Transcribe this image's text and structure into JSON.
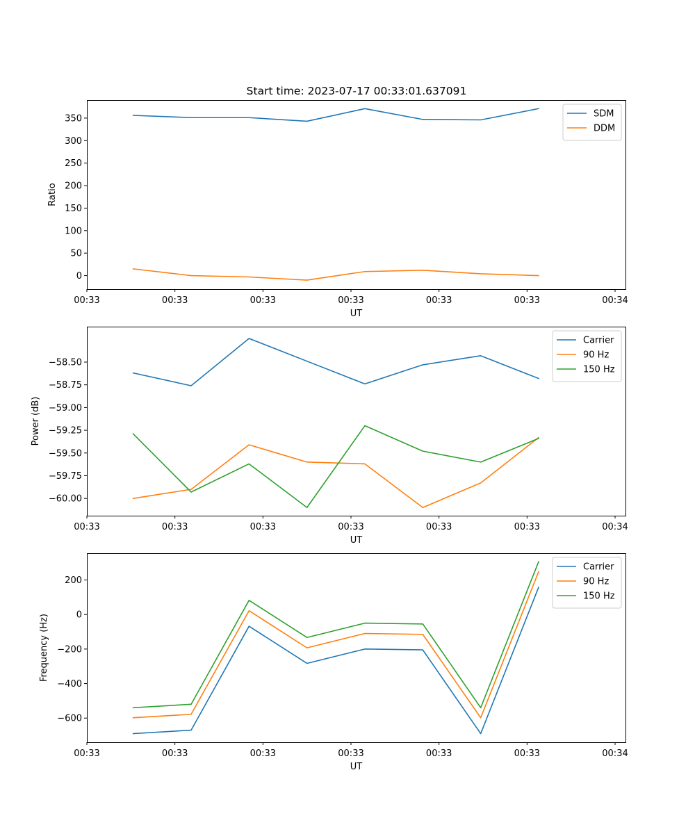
{
  "colors": {
    "blue": "#1f77b4",
    "orange": "#ff7f0e",
    "green": "#2ca02c"
  },
  "chart_data": [
    {
      "type": "line",
      "title": "Start time: 2023-07-17 00:33:01.637091",
      "xlabel": "UT",
      "ylabel": "Ratio",
      "x": [
        1,
        2,
        3,
        4,
        5,
        6,
        7,
        8
      ],
      "xlim": [
        0.2,
        9.5
      ],
      "xticks": [
        0.2,
        1.72,
        3.24,
        4.76,
        6.28,
        7.8,
        9.32
      ],
      "xtick_labels": [
        "00:33",
        "00:33",
        "00:33",
        "00:33",
        "00:33",
        "00:33",
        "00:34"
      ],
      "ylim": [
        -30,
        390
      ],
      "yticks": [
        0,
        50,
        100,
        150,
        200,
        250,
        300,
        350
      ],
      "ytick_labels": [
        "0",
        "50",
        "100",
        "150",
        "200",
        "250",
        "300",
        "350"
      ],
      "legend_loc": "upper right",
      "series": [
        {
          "name": "SDM",
          "color": "#1f77b4",
          "values": [
            356,
            351,
            351,
            343,
            371,
            347,
            346,
            371
          ]
        },
        {
          "name": "DDM",
          "color": "#ff7f0e",
          "values": [
            15,
            0,
            -3,
            -10,
            9,
            12,
            4,
            0
          ]
        }
      ]
    },
    {
      "type": "line",
      "title": "",
      "xlabel": "UT",
      "ylabel": "Power (dB)",
      "x": [
        1,
        2,
        3,
        4,
        5,
        6,
        7,
        8
      ],
      "xlim": [
        0.2,
        9.5
      ],
      "xticks": [
        0.2,
        1.72,
        3.24,
        4.76,
        6.28,
        7.8,
        9.32
      ],
      "xtick_labels": [
        "00:33",
        "00:33",
        "00:33",
        "00:33",
        "00:33",
        "00:33",
        "00:34"
      ],
      "ylim": [
        -60.19,
        -58.11
      ],
      "yticks": [
        -60.0,
        -59.75,
        -59.5,
        -59.25,
        -59.0,
        -58.75,
        -58.5
      ],
      "ytick_labels": [
        "−60.00",
        "−59.75",
        "−59.50",
        "−59.25",
        "−59.00",
        "−58.75",
        "−58.50"
      ],
      "legend_loc": "upper right",
      "series": [
        {
          "name": "Carrier",
          "color": "#1f77b4",
          "values": [
            -58.62,
            -58.76,
            -58.24,
            -58.49,
            -58.74,
            -58.53,
            -58.43,
            -58.68
          ]
        },
        {
          "name": "90 Hz",
          "color": "#ff7f0e",
          "values": [
            -60.0,
            -59.9,
            -59.41,
            -59.6,
            -59.62,
            -60.1,
            -59.83,
            -59.33
          ]
        },
        {
          "name": "150 Hz",
          "color": "#2ca02c",
          "values": [
            -59.29,
            -59.93,
            -59.62,
            -60.1,
            -59.2,
            -59.48,
            -59.6,
            -59.34
          ]
        }
      ]
    },
    {
      "type": "line",
      "title": "",
      "xlabel": "UT",
      "ylabel": "Frequency (Hz)",
      "x": [
        1,
        2,
        3,
        4,
        5,
        6,
        7,
        8
      ],
      "xlim": [
        0.2,
        9.5
      ],
      "xticks": [
        0.2,
        1.72,
        3.24,
        4.76,
        6.28,
        7.8,
        9.32
      ],
      "xtick_labels": [
        "00:33",
        "00:33",
        "00:33",
        "00:33",
        "00:33",
        "00:33",
        "00:34"
      ],
      "ylim": [
        -740,
        355
      ],
      "yticks": [
        -600,
        -400,
        -200,
        0,
        200
      ],
      "ytick_labels": [
        "−600",
        "−400",
        "−200",
        "0",
        "200"
      ],
      "legend_loc": "upper right",
      "series": [
        {
          "name": "Carrier",
          "color": "#1f77b4",
          "values": [
            -690,
            -670,
            -68,
            -283,
            -200,
            -205,
            -690,
            158
          ]
        },
        {
          "name": "90 Hz",
          "color": "#ff7f0e",
          "values": [
            -598,
            -578,
            22,
            -193,
            -110,
            -115,
            -598,
            248
          ]
        },
        {
          "name": "150 Hz",
          "color": "#2ca02c",
          "values": [
            -540,
            -520,
            82,
            -133,
            -50,
            -55,
            -540,
            306
          ]
        }
      ]
    }
  ]
}
